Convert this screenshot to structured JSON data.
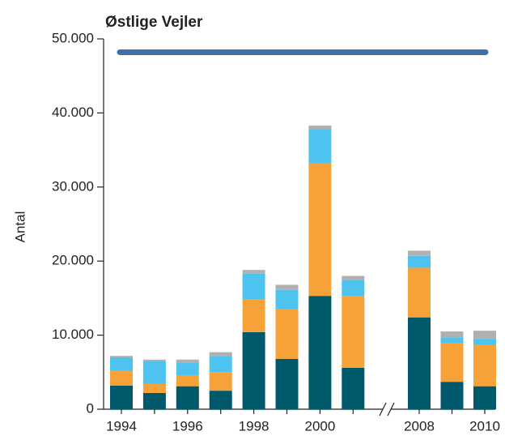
{
  "chart_data": {
    "type": "stacked_bar",
    "title": "Østlige Vejler",
    "ylabel": "Antal",
    "categories": [
      "1994",
      null,
      "1996",
      null,
      "1998",
      null,
      "2000",
      null,
      "2008",
      null,
      "2010"
    ],
    "series": [
      {
        "color": "#00596b",
        "values": [
          3200,
          2200,
          3100,
          2500,
          10400,
          6800,
          15300,
          5600,
          12400,
          3700,
          3100
        ]
      },
      {
        "color": "#f7a239",
        "values": [
          2000,
          1200,
          1500,
          2500,
          4400,
          6700,
          17900,
          9700,
          6700,
          5200,
          5600
        ]
      },
      {
        "color": "#4fc3f0",
        "values": [
          1800,
          3100,
          1700,
          2200,
          3500,
          2600,
          4600,
          2100,
          1600,
          800,
          800
        ]
      },
      {
        "color": "#b0b0b0",
        "values": [
          200,
          200,
          400,
          500,
          500,
          700,
          500,
          600,
          700,
          800,
          1100
        ]
      }
    ],
    "reference_line": {
      "value": 48200,
      "color": "#3e6fa8"
    },
    "ylim": [
      0,
      50000
    ],
    "yticks": [
      0,
      {
        "value": 10000,
        "label": "10.000"
      },
      {
        "value": 20000,
        "label": "20.000"
      },
      {
        "value": 30000,
        "label": "30.000"
      },
      {
        "value": 40000,
        "label": "40.000"
      },
      {
        "value": 50000,
        "label": "50.000"
      }
    ],
    "grid": false
  }
}
